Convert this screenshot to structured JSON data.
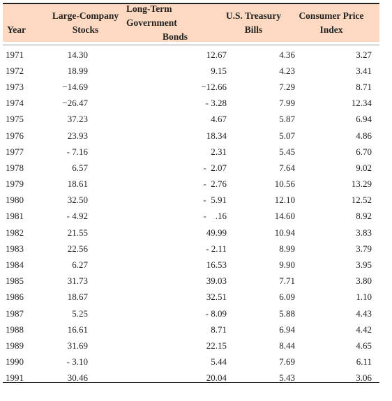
{
  "table": {
    "headers": {
      "year": "Year",
      "large_company_l1": "Large-Company",
      "large_company_l2": "Stocks",
      "long_term_l1": "Long-Term Government",
      "long_term_l2": "Bonds",
      "treasury_l1": "U.S. Treasury",
      "treasury_l2": "Bills",
      "cpi_l1": "Consumer Price",
      "cpi_l2": "Index"
    },
    "rows": [
      [
        "1971",
        "14.30",
        "12.67",
        "4.36",
        "3.27"
      ],
      [
        "1972",
        "18.99",
        "9.15",
        "4.23",
        "3.41"
      ],
      [
        "1973",
        "−14.69",
        "−12.66",
        "7.29",
        "8.71"
      ],
      [
        "1974",
        "−26.47",
        "- 3.28",
        "7.99",
        "12.34"
      ],
      [
        "1975",
        "37.23",
        "4.67",
        "5.87",
        "6.94"
      ],
      [
        "1976",
        "23.93",
        "18.34",
        "5.07",
        "4.86"
      ],
      [
        "1977",
        "- 7.16",
        "2.31",
        "5.45",
        "6.70"
      ],
      [
        "1978",
        "6.57",
        "-  2.07",
        "7.64",
        "9.02"
      ],
      [
        "1979",
        "18.61",
        "-  2.76",
        "10.56",
        "13.29"
      ],
      [
        "1980",
        "32.50",
        "-  5.91",
        "12.10",
        "12.52"
      ],
      [
        "1981",
        "- 4.92",
        "-    .16",
        "14.60",
        "8.92"
      ],
      [
        "1982",
        "21.55",
        "49.99",
        "10.94",
        "3.83"
      ],
      [
        "1983",
        "22.56",
        "- 2.11",
        "8.99",
        "3.79"
      ],
      [
        "1984",
        "6.27",
        "16.53",
        "9.90",
        "3.95"
      ],
      [
        "1985",
        "31.73",
        "39.03",
        "7.71",
        "3.80"
      ],
      [
        "1986",
        "18.67",
        "32.51",
        "6.09",
        "1.10"
      ],
      [
        "1987",
        "5.25",
        "- 8.09",
        "5.88",
        "4.43"
      ],
      [
        "1988",
        "16.61",
        "8.71",
        "6.94",
        "4.42"
      ],
      [
        "1989",
        "31.69",
        "22.15",
        "8.44",
        "4.65"
      ],
      [
        "1990",
        "- 3.10",
        "5.44",
        "7.69",
        "6.11"
      ],
      [
        "1991",
        "30.46",
        "20.04",
        "5.43",
        "3.06"
      ]
    ]
  }
}
